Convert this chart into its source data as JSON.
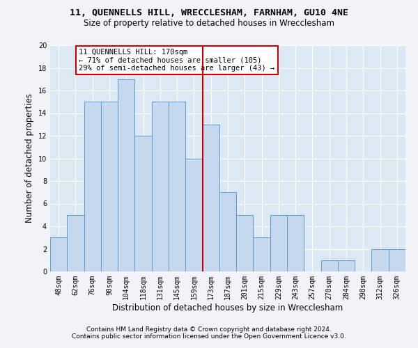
{
  "title": "11, QUENNELLS HILL, WRECCLESHAM, FARNHAM, GU10 4NE",
  "subtitle": "Size of property relative to detached houses in Wrecclesham",
  "xlabel": "Distribution of detached houses by size in Wrecclesham",
  "ylabel": "Number of detached properties",
  "categories": [
    "48sqm",
    "62sqm",
    "76sqm",
    "90sqm",
    "104sqm",
    "118sqm",
    "131sqm",
    "145sqm",
    "159sqm",
    "173sqm",
    "187sqm",
    "201sqm",
    "215sqm",
    "229sqm",
    "243sqm",
    "257sqm",
    "270sqm",
    "284sqm",
    "298sqm",
    "312sqm",
    "326sqm"
  ],
  "values": [
    3,
    5,
    15,
    15,
    17,
    12,
    15,
    15,
    10,
    13,
    7,
    5,
    3,
    5,
    5,
    0,
    1,
    1,
    0,
    2,
    2
  ],
  "bar_color": "#c5d8ed",
  "bar_edge_color": "#5b9bd5",
  "highlight_index": 9,
  "highlight_line_color": "#cc0000",
  "annotation_text": "11 QUENNELLS HILL: 170sqm\n← 71% of detached houses are smaller (105)\n29% of semi-detached houses are larger (43) →",
  "annotation_box_color": "#ffffff",
  "annotation_box_edge": "#cc0000",
  "ylim": [
    0,
    20
  ],
  "yticks": [
    0,
    2,
    4,
    6,
    8,
    10,
    12,
    14,
    16,
    18,
    20
  ],
  "footer1": "Contains HM Land Registry data © Crown copyright and database right 2024.",
  "footer2": "Contains public sector information licensed under the Open Government Licence v3.0.",
  "bg_color": "#dce9f5",
  "grid_color": "#ffffff",
  "title_fontsize": 9.5,
  "subtitle_fontsize": 8.5,
  "tick_fontsize": 7,
  "label_fontsize": 8.5,
  "footer_fontsize": 6.5,
  "annotation_fontsize": 7.5
}
